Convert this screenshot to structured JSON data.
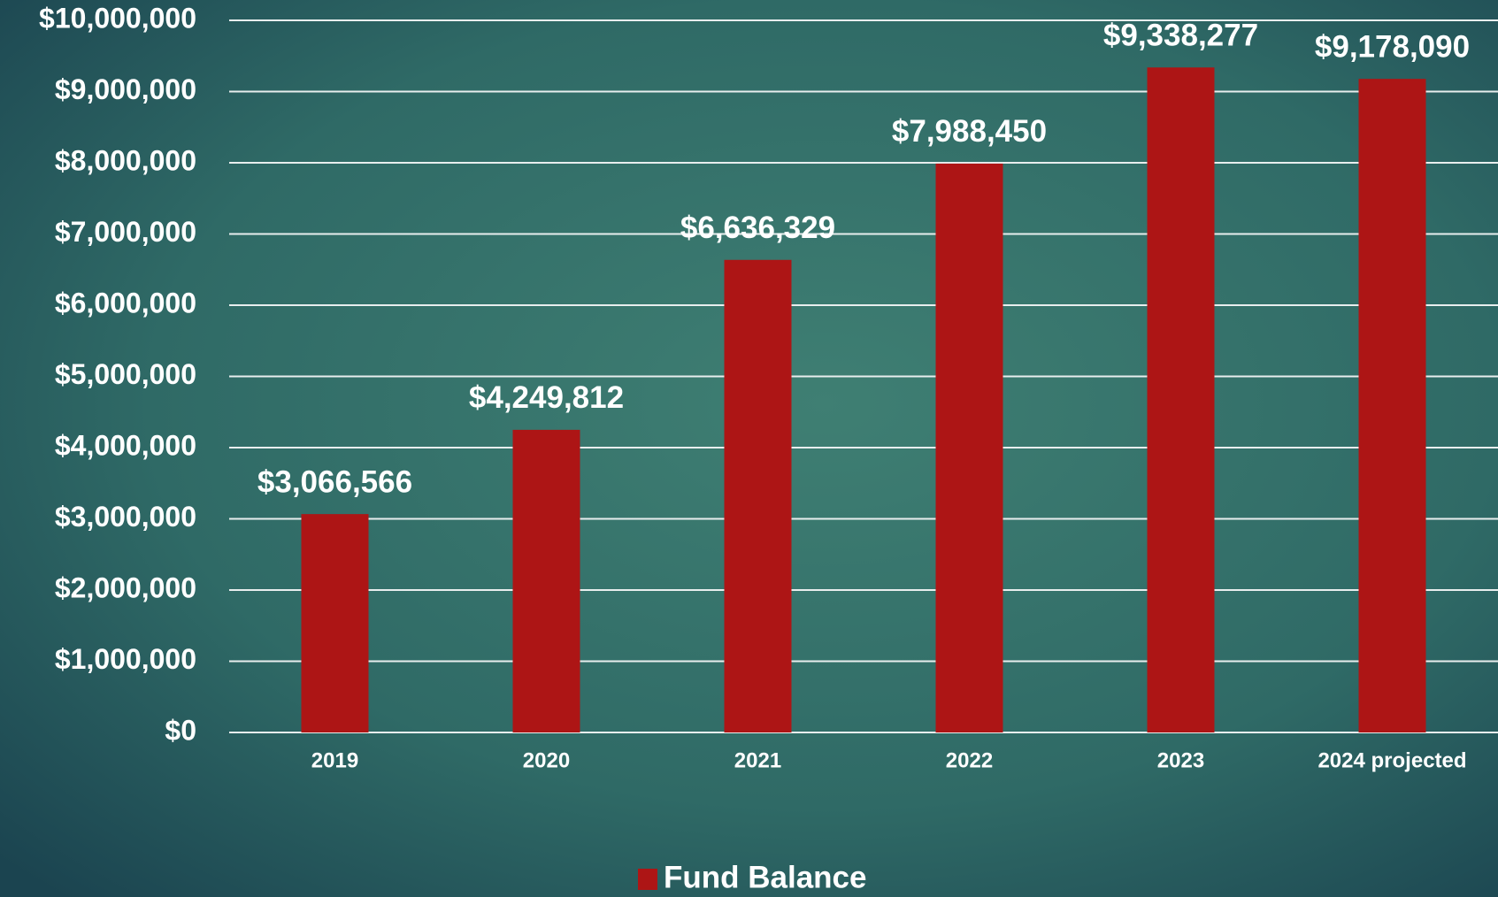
{
  "chart_data": {
    "type": "bar",
    "categories": [
      "2019",
      "2020",
      "2021",
      "2022",
      "2023",
      "2024 projected"
    ],
    "series": [
      {
        "name": "Fund Balance",
        "color": "#ad1515",
        "values": [
          3066566,
          4249812,
          6636329,
          7988450,
          9338277,
          9178090
        ],
        "value_labels": [
          "$3,066,566",
          "$4,249,812",
          "$6,636,329",
          "$7,988,450",
          "$9,338,277",
          "$9,178,090"
        ]
      }
    ],
    "ylim": [
      0,
      10000000
    ],
    "yticks": [
      {
        "value": 0,
        "label": "$0"
      },
      {
        "value": 1000000,
        "label": "$1,000,000"
      },
      {
        "value": 2000000,
        "label": "$2,000,000"
      },
      {
        "value": 3000000,
        "label": "$3,000,000"
      },
      {
        "value": 4000000,
        "label": "$4,000,000"
      },
      {
        "value": 5000000,
        "label": "$5,000,000"
      },
      {
        "value": 6000000,
        "label": "$6,000,000"
      },
      {
        "value": 7000000,
        "label": "$7,000,000"
      },
      {
        "value": 8000000,
        "label": "$8,000,000"
      },
      {
        "value": 9000000,
        "label": "$9,000,000"
      },
      {
        "value": 10000000,
        "label": "$10,000,000"
      }
    ],
    "grid": true,
    "legend": "bottom"
  }
}
